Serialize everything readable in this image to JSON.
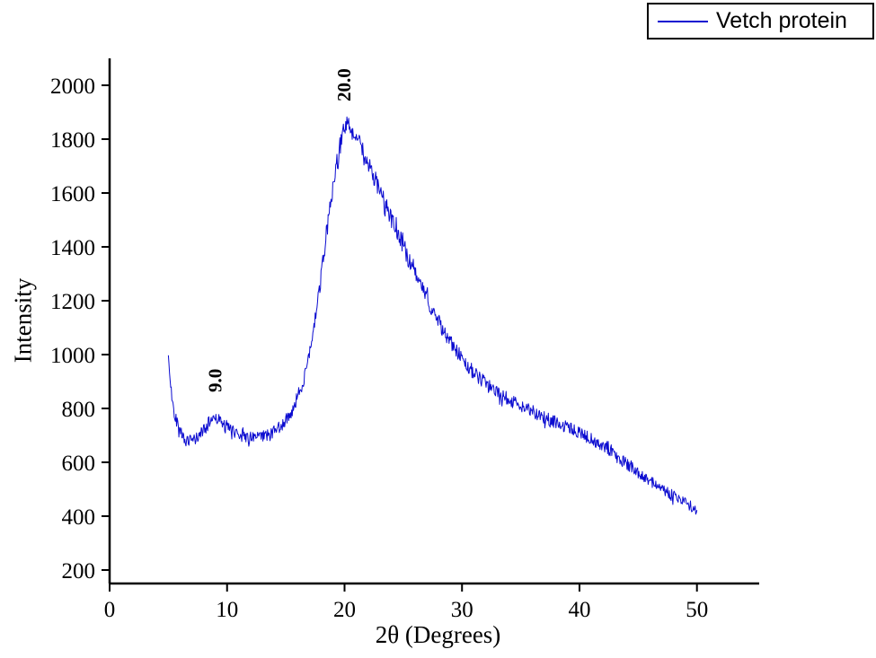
{
  "figure": {
    "background": "#ffffff"
  },
  "legend": {
    "label": "Vetch protein",
    "line_color": "#0b0bd0"
  },
  "chart_data": {
    "type": "line",
    "title": "",
    "xlabel": "2θ (Degrees)",
    "ylabel": "Intensity",
    "xlim": [
      0,
      55.3
    ],
    "ylim": [
      150,
      2100
    ],
    "x_ticks": [
      0,
      10,
      20,
      30,
      40,
      50
    ],
    "y_ticks": [
      200,
      400,
      600,
      800,
      1000,
      1200,
      1400,
      1600,
      1800,
      2000
    ],
    "grid": false,
    "legend_position": "top-right",
    "line_color": "#0b0bd0",
    "axis_color": "#000000",
    "noise": {
      "seed": 42,
      "base": 15,
      "proportional": 0.012,
      "spike_chance": 0.08,
      "spike_factor": 1.7
    },
    "sample_step": 0.05,
    "annotations": [
      {
        "x": 8.9,
        "value": 860,
        "label": "9.0"
      },
      {
        "x": 19.9,
        "value": 1940,
        "label": "20.0"
      }
    ],
    "series": [
      {
        "name": "Vetch protein",
        "anchors": [
          [
            5.0,
            1000
          ],
          [
            5.05,
            960
          ],
          [
            5.15,
            900
          ],
          [
            5.3,
            840
          ],
          [
            5.5,
            790
          ],
          [
            5.8,
            740
          ],
          [
            6.2,
            700
          ],
          [
            6.6,
            678
          ],
          [
            7.0,
            678
          ],
          [
            7.4,
            690
          ],
          [
            7.8,
            710
          ],
          [
            8.2,
            730
          ],
          [
            8.6,
            755
          ],
          [
            8.9,
            772
          ],
          [
            9.1,
            768
          ],
          [
            9.4,
            752
          ],
          [
            9.8,
            737
          ],
          [
            10.2,
            725
          ],
          [
            10.6,
            715
          ],
          [
            11.0,
            705
          ],
          [
            11.5,
            696
          ],
          [
            12.0,
            690
          ],
          [
            12.5,
            689
          ],
          [
            13.0,
            694
          ],
          [
            13.5,
            703
          ],
          [
            14.0,
            716
          ],
          [
            14.5,
            733
          ],
          [
            15.0,
            756
          ],
          [
            15.5,
            790
          ],
          [
            16.0,
            840
          ],
          [
            16.5,
            905
          ],
          [
            17.0,
            995
          ],
          [
            17.5,
            1115
          ],
          [
            18.0,
            1290
          ],
          [
            18.4,
            1430
          ],
          [
            18.8,
            1560
          ],
          [
            19.2,
            1680
          ],
          [
            19.6,
            1775
          ],
          [
            19.9,
            1830
          ],
          [
            20.1,
            1850
          ],
          [
            20.4,
            1848
          ],
          [
            20.7,
            1832
          ],
          [
            21.0,
            1808
          ],
          [
            21.5,
            1765
          ],
          [
            22.0,
            1715
          ],
          [
            22.5,
            1662
          ],
          [
            23.0,
            1605
          ],
          [
            23.5,
            1552
          ],
          [
            24.0,
            1500
          ],
          [
            24.5,
            1448
          ],
          [
            25.0,
            1398
          ],
          [
            25.5,
            1348
          ],
          [
            26.0,
            1300
          ],
          [
            26.5,
            1253
          ],
          [
            27.0,
            1208
          ],
          [
            27.5,
            1164
          ],
          [
            28.0,
            1122
          ],
          [
            28.5,
            1083
          ],
          [
            29.0,
            1047
          ],
          [
            29.5,
            1014
          ],
          [
            30.0,
            985
          ],
          [
            30.5,
            958
          ],
          [
            31.0,
            933
          ],
          [
            31.5,
            911
          ],
          [
            32.0,
            892
          ],
          [
            32.5,
            875
          ],
          [
            33.0,
            860
          ],
          [
            33.5,
            846
          ],
          [
            34.0,
            833
          ],
          [
            34.5,
            822
          ],
          [
            35.0,
            812
          ],
          [
            35.5,
            800
          ],
          [
            36.0,
            788
          ],
          [
            36.5,
            777
          ],
          [
            37.0,
            766
          ],
          [
            37.5,
            756
          ],
          [
            38.0,
            747
          ],
          [
            38.5,
            738
          ],
          [
            39.0,
            729
          ],
          [
            39.5,
            719
          ],
          [
            40.0,
            709
          ],
          [
            40.5,
            698
          ],
          [
            41.0,
            686
          ],
          [
            41.5,
            672
          ],
          [
            42.0,
            657
          ],
          [
            42.5,
            642
          ],
          [
            43.0,
            626
          ],
          [
            43.5,
            610
          ],
          [
            44.0,
            594
          ],
          [
            44.5,
            578
          ],
          [
            45.0,
            562
          ],
          [
            45.5,
            547
          ],
          [
            46.0,
            532
          ],
          [
            46.5,
            517
          ],
          [
            47.0,
            503
          ],
          [
            47.5,
            489
          ],
          [
            48.0,
            476
          ],
          [
            48.5,
            463
          ],
          [
            49.0,
            450
          ],
          [
            49.5,
            436
          ],
          [
            50.0,
            420
          ]
        ]
      }
    ]
  }
}
